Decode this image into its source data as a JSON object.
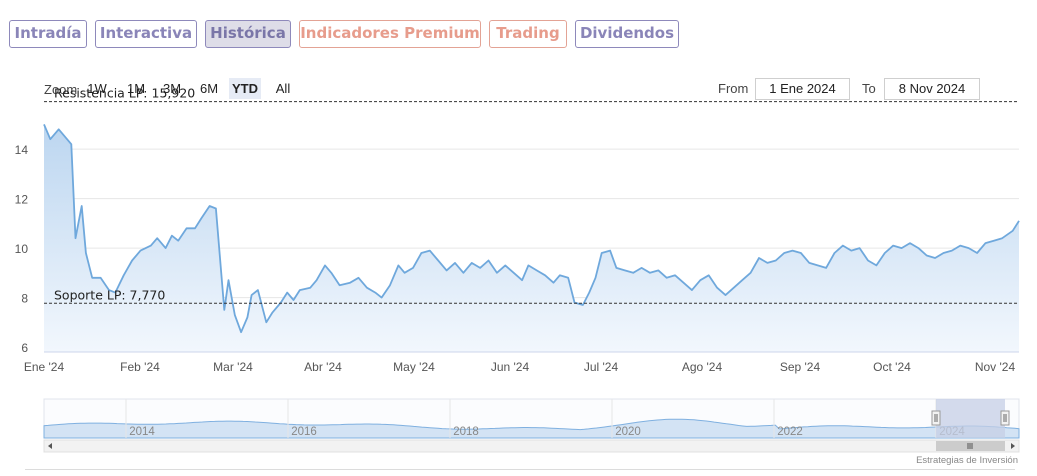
{
  "tabs": [
    {
      "label": "Intradía",
      "style": "purple"
    },
    {
      "label": "Interactiva",
      "style": "purple"
    },
    {
      "label": "Histórica",
      "style": "active"
    },
    {
      "label": "Indicadores Premium",
      "style": "salmon"
    },
    {
      "label": "Trading",
      "style": "salmon"
    },
    {
      "label": "Dividendos",
      "style": "purple"
    }
  ],
  "zoom": {
    "label": "Zoom",
    "buttons": [
      {
        "label": "1W",
        "selected": false
      },
      {
        "label": "1M",
        "selected": false
      },
      {
        "label": "3M",
        "selected": false
      },
      {
        "label": "6M",
        "selected": false
      },
      {
        "label": "YTD",
        "selected": true
      },
      {
        "label": "All",
        "selected": false
      }
    ]
  },
  "range": {
    "from_label": "From",
    "from_value": "1 Ene 2024",
    "to_label": "To",
    "to_value": "8 Nov 2024"
  },
  "credit": "Estrategias de Inversión",
  "colors": {
    "line": "#6fa8dc",
    "fill_top": "#bcd6f0",
    "fill_bottom": "#f2f7fd",
    "grid": "#e6e6e6",
    "ref_line": "#333333",
    "nav_mask": "#c5cfe6"
  },
  "chart_data": {
    "type": "area",
    "ylim": [
      5.8,
      15.5
    ],
    "yticks": [
      6,
      8,
      10,
      12,
      14
    ],
    "xlabels": [
      "Ene '24",
      "Feb '24",
      "Mar '24",
      "Abr '24",
      "May '24",
      "Jun '24",
      "Jul '24",
      "Ago '24",
      "Sep '24",
      "Oct '24",
      "Nov '24"
    ],
    "plot_lines": [
      {
        "label": "Resistencia LP: 15,920",
        "value": 15.92
      },
      {
        "label": "Soporte LP: 7,770",
        "value": 7.77
      }
    ],
    "series": [
      {
        "values": [
          [
            0,
            15.0
          ],
          [
            3,
            14.4
          ],
          [
            7,
            14.8
          ],
          [
            13,
            14.2
          ],
          [
            15,
            10.4
          ],
          [
            18,
            11.7
          ],
          [
            20,
            9.8
          ],
          [
            23,
            8.8
          ],
          [
            27,
            8.8
          ],
          [
            31,
            8.3
          ],
          [
            34,
            8.2
          ],
          [
            38,
            8.9
          ],
          [
            42,
            9.5
          ],
          [
            46,
            9.9
          ],
          [
            51,
            10.1
          ],
          [
            54,
            10.4
          ],
          [
            58,
            10.0
          ],
          [
            61,
            10.5
          ],
          [
            64,
            10.3
          ],
          [
            68,
            10.8
          ],
          [
            72,
            10.8
          ],
          [
            75,
            11.2
          ],
          [
            79,
            11.7
          ],
          [
            82,
            11.6
          ],
          [
            86,
            7.5
          ],
          [
            88,
            8.7
          ],
          [
            91,
            7.3
          ],
          [
            94,
            6.6
          ],
          [
            97,
            7.2
          ],
          [
            99,
            8.1
          ],
          [
            102,
            8.3
          ],
          [
            106,
            7.0
          ],
          [
            109,
            7.4
          ],
          [
            113,
            7.8
          ],
          [
            116,
            8.2
          ],
          [
            119,
            7.9
          ],
          [
            122,
            8.3
          ],
          [
            127,
            8.4
          ],
          [
            130,
            8.7
          ],
          [
            134,
            9.3
          ],
          [
            137,
            9.0
          ],
          [
            141,
            8.5
          ],
          [
            146,
            8.6
          ],
          [
            150,
            8.8
          ],
          [
            154,
            8.4
          ],
          [
            158,
            8.2
          ],
          [
            161,
            8.0
          ],
          [
            165,
            8.5
          ],
          [
            169,
            9.3
          ],
          [
            172,
            9.0
          ],
          [
            176,
            9.2
          ],
          [
            180,
            9.8
          ],
          [
            184,
            9.9
          ],
          [
            188,
            9.5
          ],
          [
            192,
            9.1
          ],
          [
            196,
            9.4
          ],
          [
            200,
            9.0
          ],
          [
            204,
            9.4
          ],
          [
            208,
            9.2
          ],
          [
            212,
            9.5
          ],
          [
            216,
            9.0
          ],
          [
            220,
            9.3
          ],
          [
            224,
            9.0
          ],
          [
            228,
            8.7
          ],
          [
            231,
            9.3
          ],
          [
            235,
            9.1
          ],
          [
            239,
            8.9
          ],
          [
            243,
            8.6
          ],
          [
            246,
            8.9
          ],
          [
            250,
            8.8
          ],
          [
            253,
            7.8
          ],
          [
            257,
            7.7
          ],
          [
            260,
            8.2
          ],
          [
            263,
            8.8
          ],
          [
            266,
            9.8
          ],
          [
            270,
            9.9
          ],
          [
            273,
            9.2
          ],
          [
            277,
            9.1
          ],
          [
            281,
            9.0
          ],
          [
            285,
            9.2
          ],
          [
            289,
            9.0
          ],
          [
            293,
            9.1
          ],
          [
            297,
            8.8
          ],
          [
            301,
            8.9
          ],
          [
            305,
            8.6
          ],
          [
            309,
            8.3
          ],
          [
            313,
            8.7
          ],
          [
            317,
            8.9
          ],
          [
            321,
            8.4
          ],
          [
            325,
            8.1
          ],
          [
            329,
            8.4
          ],
          [
            333,
            8.7
          ],
          [
            337,
            9.0
          ],
          [
            341,
            9.6
          ],
          [
            345,
            9.4
          ],
          [
            349,
            9.5
          ],
          [
            353,
            9.8
          ],
          [
            357,
            9.9
          ],
          [
            361,
            9.8
          ],
          [
            365,
            9.4
          ],
          [
            369,
            9.3
          ],
          [
            373,
            9.2
          ],
          [
            377,
            9.8
          ],
          [
            381,
            10.1
          ],
          [
            385,
            9.9
          ],
          [
            389,
            10.0
          ],
          [
            393,
            9.5
          ],
          [
            397,
            9.3
          ],
          [
            401,
            9.8
          ],
          [
            405,
            10.1
          ],
          [
            409,
            10.0
          ],
          [
            413,
            10.2
          ],
          [
            417,
            10.0
          ],
          [
            421,
            9.7
          ],
          [
            425,
            9.6
          ],
          [
            429,
            9.8
          ],
          [
            433,
            9.9
          ],
          [
            437,
            10.1
          ],
          [
            441,
            10.0
          ],
          [
            445,
            9.8
          ],
          [
            449,
            10.2
          ],
          [
            453,
            10.3
          ],
          [
            457,
            10.4
          ],
          [
            462,
            10.7
          ],
          [
            465,
            11.1
          ]
        ]
      }
    ]
  },
  "navigator": {
    "xlabels": [
      "2014",
      "2016",
      "2018",
      "2020",
      "2022",
      "2024"
    ]
  }
}
